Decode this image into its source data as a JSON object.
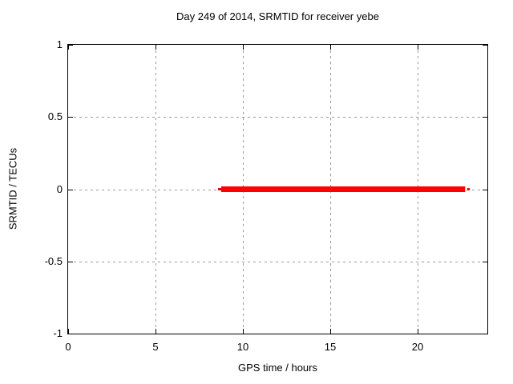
{
  "figure": {
    "title": "Day 249 of 2014, SRMTID for receiver yebe",
    "xlabel": "GPS time / hours",
    "ylabel": "SRMTID / TECUs"
  },
  "chart_data": {
    "type": "line",
    "title": "Day 249 of 2014, SRMTID for receiver yebe",
    "xlabel": "GPS time / hours",
    "ylabel": "SRMTID / TECUs",
    "xlim": [
      0,
      24
    ],
    "ylim": [
      -1,
      1
    ],
    "xticks": [
      0,
      5,
      10,
      15,
      20
    ],
    "yticks": [
      1,
      0.5,
      0,
      -0.5,
      -1
    ],
    "grid": true,
    "grid_style": "dashed",
    "legend": "none",
    "series": [
      {
        "name": "SRMTID",
        "color": "#ff0000",
        "description": "constant line at y=0 TECUs from ~8.6 h to ~23.0 h GPS time",
        "segments": [
          {
            "x_start": 8.6,
            "x_end": 8.75,
            "y": 0,
            "thickness_px": 3
          },
          {
            "x_start": 8.75,
            "x_end": 22.72,
            "y": 0,
            "thickness_px": 7
          },
          {
            "x_start": 22.85,
            "x_end": 23.0,
            "y": 0,
            "thickness_px": 3
          }
        ]
      }
    ],
    "colors": {
      "line": "#ff0000",
      "grid": "#999999",
      "border": "#000000",
      "text": "#000000",
      "background": "#ffffff"
    }
  }
}
